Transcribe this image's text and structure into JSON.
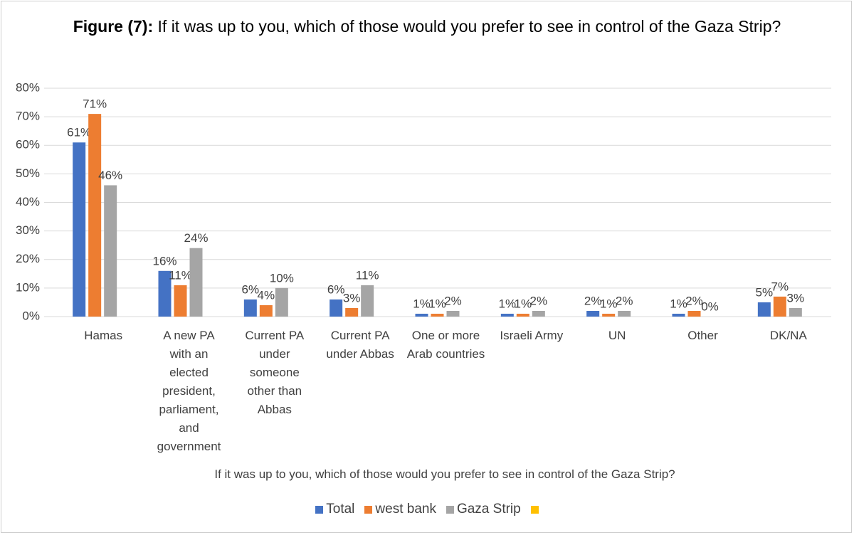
{
  "chart_data": {
    "type": "bar",
    "title_label": "Figure (7):",
    "title": "If it was up to you, which of those would you prefer to see in control of the Gaza Strip?",
    "x_label": "If it was up to you, which of those would you prefer to see in control of the Gaza Strip?",
    "categories": [
      "Hamas",
      "A new PA with an elected president, parliament, and government",
      "Current PA under someone other than Abbas",
      "Current PA under Abbas",
      "One or more Arab countries",
      "Israeli Army",
      "UN",
      "Other",
      "DK/NA"
    ],
    "series": [
      {
        "name": "Total",
        "color": "#4472c4",
        "values": [
          61,
          16,
          6,
          6,
          1,
          1,
          2,
          1,
          5
        ],
        "value_labels": [
          "61%",
          "16%",
          "6%",
          "6%",
          "1%",
          "1%",
          "2%",
          "1%",
          "5%"
        ]
      },
      {
        "name": "west bank",
        "color": "#ed7d31",
        "values": [
          71,
          11,
          4,
          3,
          1,
          1,
          1,
          2,
          7
        ],
        "value_labels": [
          "71%",
          "11%",
          "4%",
          "3%",
          "1%",
          "1%",
          "1%",
          "2%",
          "7%"
        ]
      },
      {
        "name": "Gaza Strip",
        "color": "#a5a5a5",
        "values": [
          46,
          24,
          10,
          11,
          2,
          2,
          2,
          0,
          3
        ],
        "value_labels": [
          "46%",
          "24%",
          "10%",
          "11%",
          "2%",
          "2%",
          "2%",
          "0%",
          "3%"
        ]
      },
      {
        "color": "#ffc000",
        "values": [
          null,
          null,
          null,
          null,
          null,
          null,
          null,
          null,
          null
        ]
      }
    ],
    "ylim": [
      0,
      80
    ],
    "yticks": [
      {
        "value": 0,
        "label": "0%"
      },
      {
        "value": 10,
        "label": "10%"
      },
      {
        "value": 20,
        "label": "20%"
      },
      {
        "value": 30,
        "label": "30%"
      },
      {
        "value": 40,
        "label": "40%"
      },
      {
        "value": 50,
        "label": "50%"
      },
      {
        "value": 60,
        "label": "60%"
      },
      {
        "value": 70,
        "label": "70%"
      },
      {
        "value": 80,
        "label": "80%"
      }
    ],
    "grid": true,
    "legend": "bottom"
  }
}
